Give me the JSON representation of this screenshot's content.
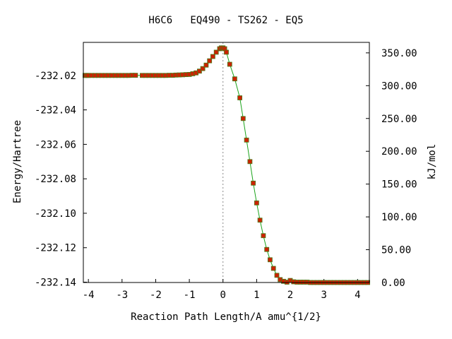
{
  "chart_data": {
    "type": "line",
    "title": "H6C6   EQ490 - TS262 - EQ5",
    "xlabel": "Reaction Path Length/A amu^{1/2}",
    "ylabel_left": "Energy/Hartree",
    "ylabel_right": "kJ/mol",
    "xlim": [
      -4.15,
      4.35
    ],
    "ylim": [
      -232.1402,
      -232.0008
    ],
    "x_ticks": [
      -4,
      -3,
      -2,
      -1,
      0,
      1,
      2,
      3,
      4
    ],
    "x_tick_labels": [
      "-4",
      "-3",
      "-2",
      "-1",
      "0",
      "1",
      "2",
      "3",
      "4"
    ],
    "y_ticks": [
      -232.02,
      -232.04,
      -232.06,
      -232.08,
      -232.1,
      -232.12,
      -232.14
    ],
    "y_tick_labels": [
      "-232.02",
      "-232.04",
      "-232.06",
      "-232.08",
      "-232.10",
      "-232.12",
      "-232.14"
    ],
    "y2_ticks": [
      0,
      50,
      100,
      150,
      200,
      250,
      300,
      350
    ],
    "y2_tick_labels": [
      "0.00",
      "50.00",
      "100.00",
      "150.00",
      "200.00",
      "250.00",
      "300.00",
      "350.00"
    ],
    "ts_x": 0.0,
    "colors": {
      "curve": "#1aa31a",
      "marker_fill": "#cc2200",
      "marker_edge": "#4a7a1a"
    },
    "series": [
      {
        "x": [
          -4.1,
          -4.05,
          -4.0,
          -3.9,
          -3.8,
          -3.7,
          -3.6,
          -3.5,
          -3.4,
          -3.3,
          -3.2,
          -3.1,
          -3.0,
          -2.9,
          -2.8,
          -2.7,
          -2.6,
          -2.4,
          -2.3,
          -2.2,
          -2.1,
          -2.0,
          -1.9,
          -1.8,
          -1.7,
          -1.6,
          -1.5,
          -1.4,
          -1.3,
          -1.2,
          -1.1,
          -1.0,
          -0.9,
          -0.8,
          -0.7,
          -0.6,
          -0.5,
          -0.4,
          -0.3,
          -0.2,
          -0.1,
          -0.05,
          0.0,
          0.05,
          0.1,
          0.2,
          0.35,
          0.5,
          0.6,
          0.7,
          0.8,
          0.9,
          1.0,
          1.1,
          1.2,
          1.3,
          1.4,
          1.5,
          1.6,
          1.7,
          1.8,
          1.9,
          2.0,
          2.1,
          2.2,
          2.3,
          2.4,
          2.5,
          2.6,
          2.7,
          2.8,
          2.9,
          3.0,
          3.1,
          3.2,
          3.3,
          3.4,
          3.5,
          3.6,
          3.7,
          3.8,
          3.9,
          4.0,
          4.1,
          4.2,
          4.3
        ],
        "y": [
          -232.02,
          -232.02,
          -232.02,
          -232.02,
          -232.02,
          -232.02,
          -232.02,
          -232.02,
          -232.02,
          -232.02,
          -232.02,
          -232.02,
          -232.02,
          -232.02,
          -232.02,
          -232.0199,
          -232.0199,
          -232.02,
          -232.02,
          -232.02,
          -232.02,
          -232.02,
          -232.02,
          -232.02,
          -232.02,
          -232.0199,
          -232.0199,
          -232.0198,
          -232.0197,
          -232.0196,
          -232.0195,
          -232.0194,
          -232.019,
          -232.0185,
          -232.0175,
          -232.016,
          -232.014,
          -232.0115,
          -232.009,
          -232.0065,
          -232.0045,
          -232.004,
          -232.004,
          -232.0045,
          -232.0065,
          -232.0135,
          -232.022,
          -232.033,
          -232.045,
          -232.0575,
          -232.07,
          -232.0825,
          -232.094,
          -232.104,
          -232.113,
          -232.121,
          -232.127,
          -232.132,
          -232.136,
          -232.1385,
          -232.1395,
          -232.14,
          -232.139,
          -232.1398,
          -232.14,
          -232.14,
          -232.14,
          -232.14,
          -232.1402,
          -232.1402,
          -232.1402,
          -232.1402,
          -232.1402,
          -232.1402,
          -232.1402,
          -232.1402,
          -232.1402,
          -232.1402,
          -232.1402,
          -232.1402,
          -232.1402,
          -232.1402,
          -232.1402,
          -232.1402,
          -232.1402,
          -232.1402
        ]
      }
    ]
  }
}
